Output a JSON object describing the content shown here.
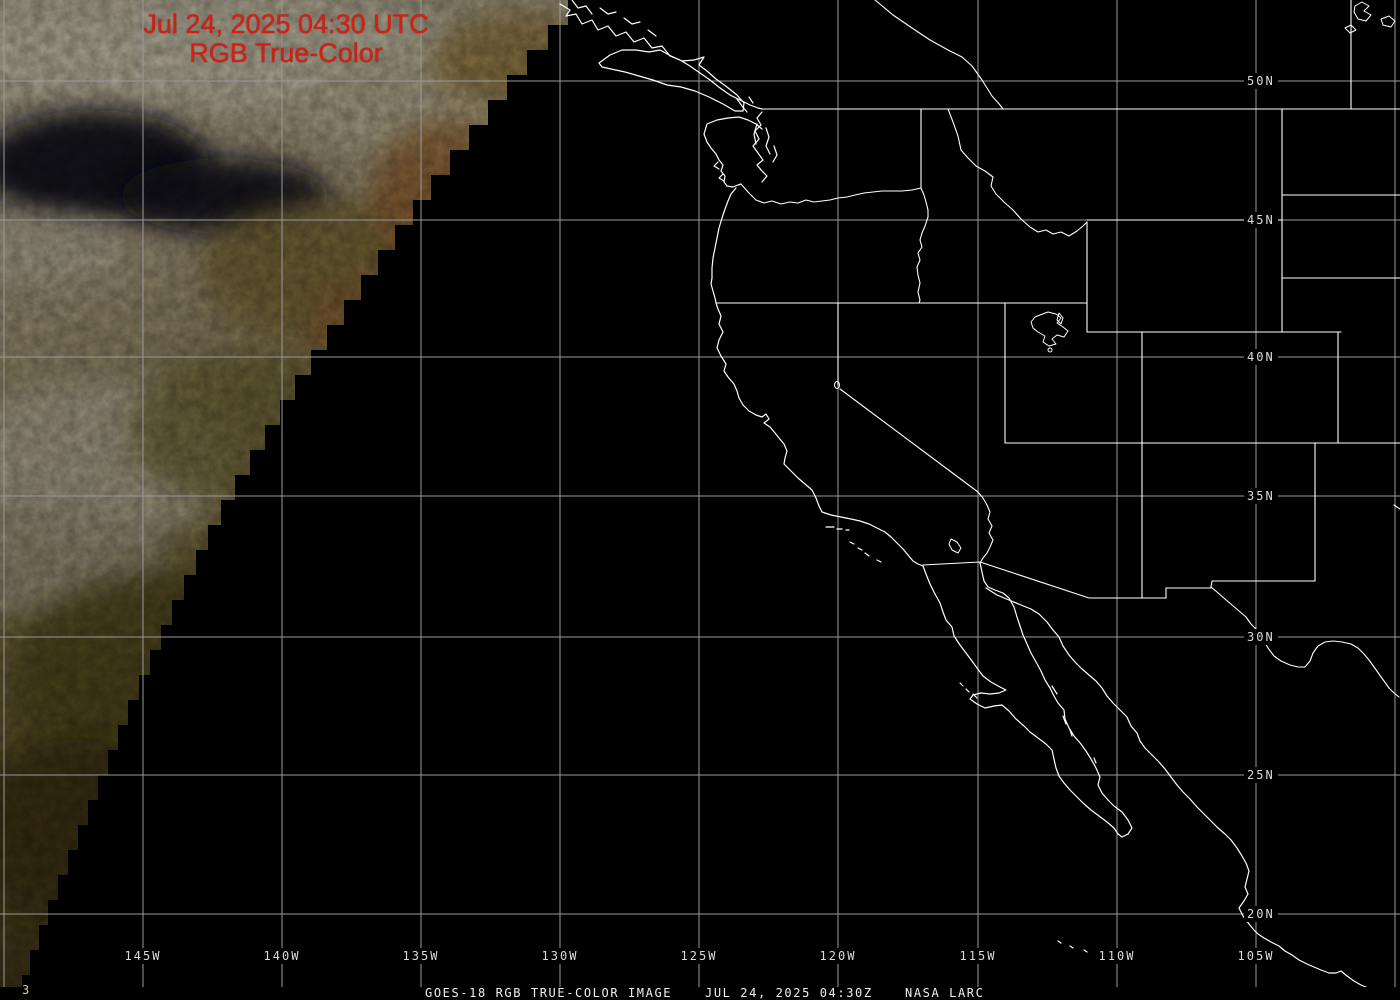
{
  "overlay_title": {
    "line1": "Jul 24, 2025 04:30 UTC",
    "line2": "RGB True-Color",
    "color": "#dc1c10"
  },
  "graticule": {
    "longitude_labels": [
      "145W",
      "140W",
      "135W",
      "130W",
      "125W",
      "120W",
      "115W",
      "110W",
      "105W"
    ],
    "latitude_labels": [
      "50N",
      "45N",
      "40N",
      "35N",
      "30N",
      "25N",
      "20N"
    ],
    "grid_color": "#9a9a9a",
    "label_color": "#dcdcdc"
  },
  "map": {
    "outline_color": "#ffffff"
  },
  "caption_bar": {
    "left": "GOES-18 RGB TRUE-COLOR IMAGE",
    "middle": "JUL 24, 2025 04:30Z",
    "right": "NASA LARC",
    "text_color": "#f0f0f0",
    "background": "#000000"
  },
  "frame_marker": {
    "text": "3",
    "color": "#d6d284"
  }
}
